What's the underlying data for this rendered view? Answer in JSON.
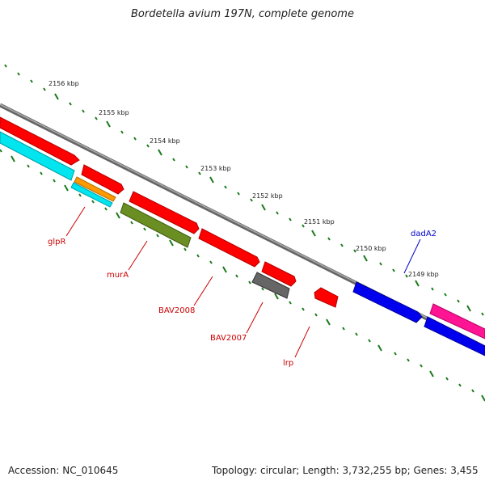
{
  "title": "Bordetella avium 197N, complete genome",
  "footer": {
    "accession": "Accession: NC_010645",
    "summary": "Topology: circular; Length: 3,732,255 bp; Genes: 3,455"
  },
  "scale_labels": [
    "2156 kbp",
    "2155 kbp",
    "2154 kbp",
    "2153 kbp",
    "2152 kbp",
    "2151 kbp",
    "2150 kbp",
    "2149 kbp"
  ],
  "gene_labels": [
    {
      "text": "glpR",
      "color": "#cc0000"
    },
    {
      "text": "murA",
      "color": "#cc0000"
    },
    {
      "text": "BAV2008",
      "color": "#cc0000"
    },
    {
      "text": "BAV2007",
      "color": "#cc0000"
    },
    {
      "text": "lrp",
      "color": "#cc0000"
    },
    {
      "text": "dadA2",
      "color": "#0000cc"
    }
  ],
  "colors": {
    "backbone": "#808080",
    "ticks": "#1a7a1a",
    "red": "#ff0000",
    "cyan": "#00e5ee",
    "orange": "#ff9900",
    "olive": "#6b8e23",
    "gray": "#666666",
    "blue": "#0000ee",
    "magenta": "#ff1493"
  }
}
